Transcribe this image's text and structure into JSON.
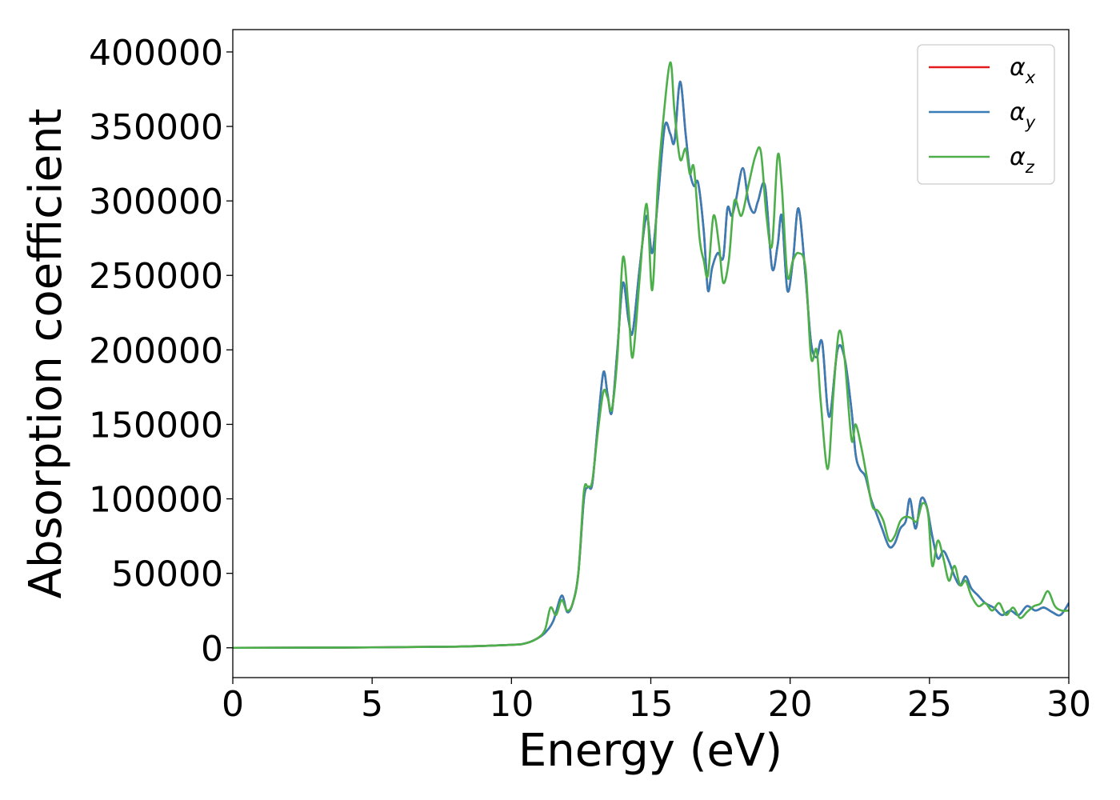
{
  "chart_data": {
    "type": "line",
    "title": "",
    "xlabel": "Energy (eV)",
    "ylabel": "Absorption coefficient",
    "xlim": [
      0,
      30
    ],
    "ylim": [
      -20000,
      415000
    ],
    "xticks": [
      0,
      5,
      10,
      15,
      20,
      25,
      30
    ],
    "xtick_labels": [
      "0",
      "5",
      "10",
      "15",
      "20",
      "25",
      "30"
    ],
    "yticks": [
      0,
      50000,
      100000,
      150000,
      200000,
      250000,
      300000,
      350000,
      400000
    ],
    "ytick_labels": [
      "0",
      "50000",
      "100000",
      "150000",
      "200000",
      "250000",
      "300000",
      "350000",
      "400000"
    ],
    "grid": false,
    "legend_position": "top-right",
    "series": [
      {
        "name": "α_x",
        "symbol": "α",
        "subscript": "x",
        "color": "#e41a1c",
        "x": [
          0,
          4,
          8,
          10,
          10.5,
          10.9,
          11.2,
          11.5,
          11.8,
          12.0,
          12.2,
          12.4,
          12.6,
          12.75,
          12.9,
          13.1,
          13.3,
          13.45,
          13.6,
          13.8,
          14.0,
          14.2,
          14.35,
          14.6,
          14.85,
          15.05,
          15.25,
          15.5,
          15.7,
          15.85,
          16.05,
          16.25,
          16.4,
          16.55,
          16.7,
          16.9,
          17.05,
          17.2,
          17.4,
          17.6,
          17.75,
          17.9,
          18.05,
          18.3,
          18.5,
          18.7,
          18.85,
          19.1,
          19.35,
          19.55,
          19.7,
          19.9,
          20.1,
          20.3,
          20.55,
          20.75,
          20.95,
          21.15,
          21.4,
          21.7,
          21.95,
          22.2,
          22.35,
          22.5,
          22.7,
          22.9,
          23.1,
          23.3,
          23.55,
          23.75,
          23.95,
          24.15,
          24.3,
          24.5,
          24.7,
          24.9,
          25.1,
          25.3,
          25.5,
          25.7,
          25.9,
          26.1,
          26.3,
          26.5,
          26.75,
          27.0,
          27.3,
          27.6,
          27.9,
          28.2,
          28.5,
          28.8,
          29.1,
          29.4,
          29.7,
          30.0
        ],
        "values": [
          0,
          200,
          800,
          2000,
          3000,
          6000,
          10000,
          18000,
          35000,
          24000,
          30000,
          50000,
          100000,
          108000,
          110000,
          150000,
          185000,
          170000,
          158000,
          200000,
          245000,
          220000,
          212000,
          255000,
          290000,
          265000,
          300000,
          350000,
          345000,
          340000,
          380000,
          345000,
          320000,
          310000,
          312000,
          280000,
          240000,
          255000,
          265000,
          262000,
          295000,
          290000,
          300000,
          322000,
          300000,
          292000,
          300000,
          310000,
          255000,
          270000,
          290000,
          240000,
          260000,
          295000,
          250000,
          205000,
          195000,
          205000,
          155000,
          200000,
          195000,
          160000,
          130000,
          120000,
          115000,
          100000,
          90000,
          80000,
          68000,
          70000,
          80000,
          85000,
          100000,
          80000,
          100000,
          95000,
          75000,
          60000,
          65000,
          58000,
          48000,
          42000,
          48000,
          40000,
          35000,
          30000,
          27000,
          22000,
          25000,
          22000,
          28000,
          25000,
          27000,
          24000,
          22000,
          30000
        ]
      },
      {
        "name": "α_y",
        "symbol": "α",
        "subscript": "y",
        "color": "#377eb8",
        "x": [
          0,
          4,
          8,
          10,
          10.5,
          10.9,
          11.2,
          11.5,
          11.8,
          12.0,
          12.2,
          12.4,
          12.6,
          12.75,
          12.9,
          13.1,
          13.3,
          13.45,
          13.6,
          13.8,
          14.0,
          14.2,
          14.35,
          14.6,
          14.85,
          15.05,
          15.25,
          15.5,
          15.7,
          15.85,
          16.05,
          16.25,
          16.4,
          16.55,
          16.7,
          16.9,
          17.05,
          17.2,
          17.4,
          17.6,
          17.75,
          17.9,
          18.05,
          18.3,
          18.5,
          18.7,
          18.85,
          19.1,
          19.35,
          19.55,
          19.7,
          19.9,
          20.1,
          20.3,
          20.55,
          20.75,
          20.95,
          21.15,
          21.4,
          21.7,
          21.95,
          22.2,
          22.35,
          22.5,
          22.7,
          22.9,
          23.1,
          23.3,
          23.55,
          23.75,
          23.95,
          24.15,
          24.3,
          24.5,
          24.7,
          24.9,
          25.1,
          25.3,
          25.5,
          25.7,
          25.9,
          26.1,
          26.3,
          26.5,
          26.75,
          27.0,
          27.3,
          27.6,
          27.9,
          28.2,
          28.5,
          28.8,
          29.1,
          29.4,
          29.7,
          30.0
        ],
        "values": [
          0,
          200,
          800,
          2000,
          3000,
          6000,
          10000,
          18000,
          35000,
          24000,
          30000,
          50000,
          100000,
          108000,
          110000,
          150000,
          185000,
          170000,
          158000,
          200000,
          245000,
          220000,
          212000,
          255000,
          290000,
          265000,
          300000,
          350000,
          345000,
          340000,
          380000,
          345000,
          320000,
          310000,
          312000,
          280000,
          240000,
          255000,
          265000,
          262000,
          295000,
          290000,
          300000,
          322000,
          300000,
          292000,
          300000,
          310000,
          255000,
          270000,
          290000,
          240000,
          260000,
          295000,
          250000,
          205000,
          195000,
          205000,
          155000,
          200000,
          195000,
          160000,
          130000,
          120000,
          115000,
          100000,
          90000,
          80000,
          68000,
          70000,
          80000,
          85000,
          100000,
          80000,
          100000,
          95000,
          75000,
          60000,
          65000,
          58000,
          48000,
          42000,
          48000,
          40000,
          35000,
          30000,
          27000,
          22000,
          25000,
          22000,
          28000,
          25000,
          27000,
          24000,
          22000,
          30000
        ]
      },
      {
        "name": "α_z",
        "symbol": "α",
        "subscript": "z",
        "color": "#4daf4a",
        "x": [
          0,
          4,
          8,
          10,
          10.5,
          10.9,
          11.2,
          11.4,
          11.6,
          11.8,
          12.0,
          12.2,
          12.4,
          12.6,
          12.75,
          12.9,
          13.1,
          13.3,
          13.45,
          13.6,
          13.8,
          14.0,
          14.2,
          14.35,
          14.6,
          14.85,
          15.05,
          15.25,
          15.45,
          15.7,
          15.85,
          16.05,
          16.25,
          16.4,
          16.55,
          16.75,
          16.9,
          17.05,
          17.25,
          17.45,
          17.6,
          17.8,
          18.0,
          18.25,
          18.5,
          18.75,
          18.95,
          19.15,
          19.35,
          19.55,
          19.7,
          19.9,
          20.1,
          20.3,
          20.55,
          20.75,
          20.95,
          21.1,
          21.35,
          21.55,
          21.75,
          21.95,
          22.2,
          22.35,
          22.55,
          22.75,
          22.95,
          23.15,
          23.35,
          23.55,
          23.75,
          23.95,
          24.15,
          24.35,
          24.55,
          24.75,
          24.95,
          25.1,
          25.3,
          25.5,
          25.7,
          25.9,
          26.1,
          26.3,
          26.5,
          26.75,
          27.0,
          27.25,
          27.5,
          27.75,
          28.0,
          28.25,
          28.5,
          28.75,
          29.0,
          29.25,
          29.5,
          29.75,
          30.0
        ],
        "values": [
          0,
          200,
          800,
          2000,
          3000,
          6000,
          12000,
          27000,
          22000,
          32000,
          25000,
          30000,
          50000,
          105000,
          108000,
          112000,
          145000,
          172000,
          168000,
          160000,
          195000,
          262000,
          228000,
          195000,
          248000,
          298000,
          240000,
          310000,
          355000,
          393000,
          360000,
          328000,
          335000,
          318000,
          322000,
          275000,
          260000,
          250000,
          290000,
          270000,
          245000,
          260000,
          300000,
          290000,
          310000,
          330000,
          333000,
          290000,
          270000,
          330000,
          310000,
          250000,
          260000,
          265000,
          255000,
          195000,
          200000,
          165000,
          120000,
          170000,
          212000,
          195000,
          140000,
          150000,
          135000,
          115000,
          95000,
          92000,
          85000,
          72000,
          75000,
          85000,
          88000,
          87000,
          85000,
          97000,
          90000,
          55000,
          72000,
          60000,
          45000,
          55000,
          42000,
          45000,
          35000,
          28000,
          30000,
          25000,
          30000,
          22000,
          27000,
          20000,
          24000,
          28000,
          30000,
          38000,
          28000,
          25000,
          25000
        ]
      }
    ]
  }
}
